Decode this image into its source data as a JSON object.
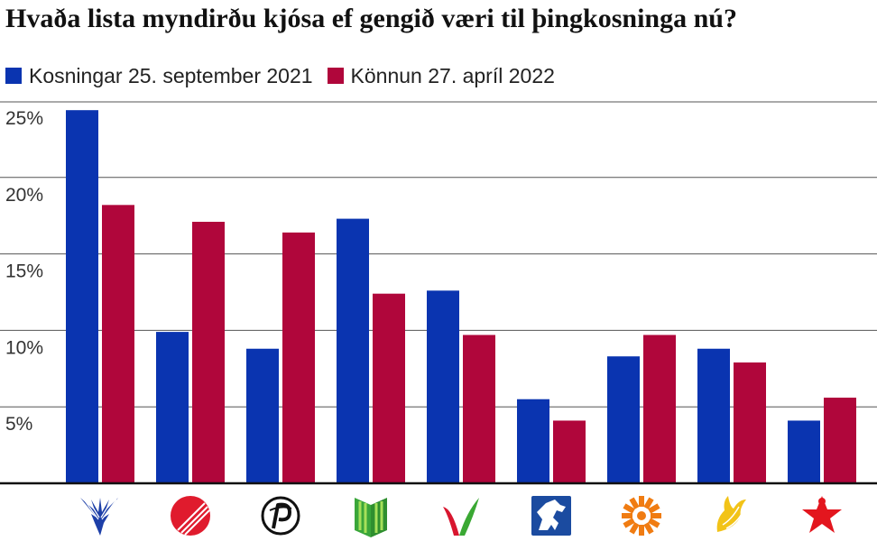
{
  "colors": {
    "series1": "#0a34b0",
    "series2": "#b0063b",
    "grid": "#555555",
    "axis": "#111111"
  },
  "chart_data": {
    "type": "bar",
    "title": "Hvaða lista myndirðu kjósa ef gengið væri til þingkosninga nú?",
    "ylim": [
      0,
      25
    ],
    "ytick_labels": [
      "25%",
      "20%",
      "15%",
      "10%",
      "5%"
    ],
    "categories": [
      "sjalfstaedisflokkur-logo",
      "samfylkingin-logo",
      "piratar-logo",
      "framsoknarflokkurinn-logo",
      "vinstri-graen-logo",
      "flokkur-folksins-logo",
      "vidreisn-logo",
      "midflokkurinn-logo",
      "sosialistaflokkurinn-logo"
    ],
    "series": [
      {
        "name": "Kosningar 25. september 2021",
        "values": [
          24.4,
          9.9,
          8.8,
          17.3,
          12.6,
          5.5,
          8.3,
          8.8,
          4.1
        ]
      },
      {
        "name": "Könnun 27. apríl 2022",
        "values": [
          18.2,
          17.1,
          16.4,
          12.4,
          9.7,
          4.1,
          9.7,
          7.9,
          5.6
        ]
      }
    ]
  }
}
